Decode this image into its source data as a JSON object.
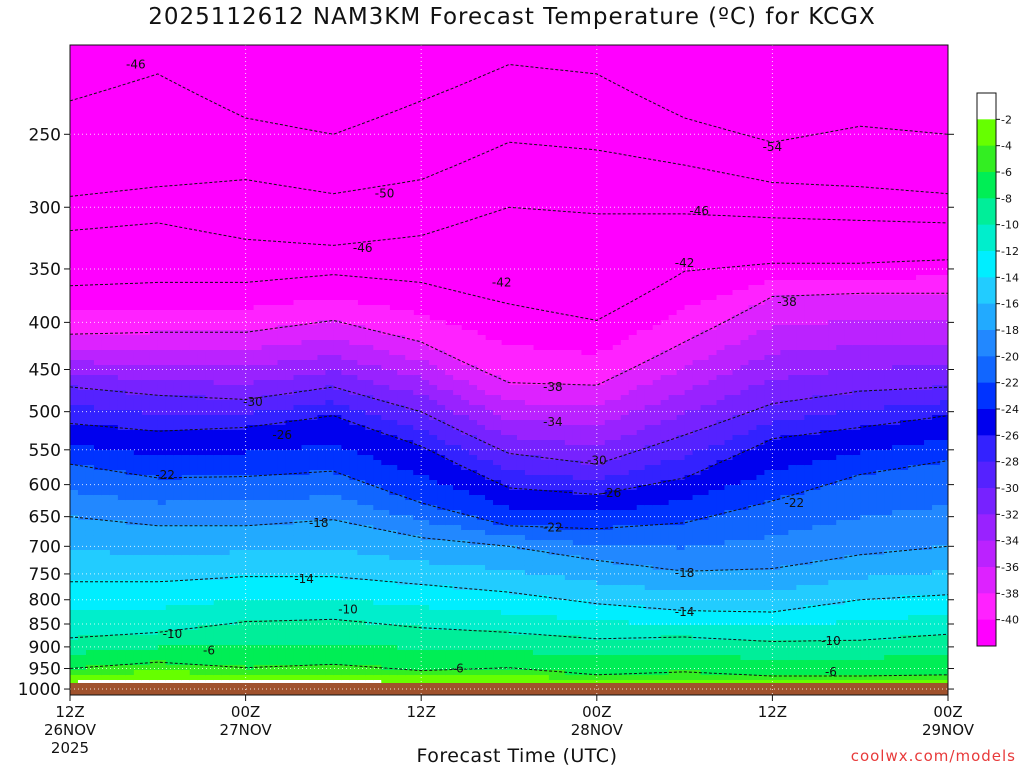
{
  "chart_data": {
    "type": "heatmap",
    "title": "2025112612 NAM3KM Forecast Temperature (ºC) for KCGX",
    "xlabel": "Forecast Time (UTC)",
    "ylabel": "",
    "credit": "coolwx.com/models",
    "x_ticks": [
      {
        "hours": 0,
        "line1": "12Z",
        "line2": "26NOV",
        "line3": "2025"
      },
      {
        "hours": 12,
        "line1": "00Z",
        "line2": "27NOV",
        "line3": ""
      },
      {
        "hours": 24,
        "line1": "12Z",
        "line2": "",
        "line3": ""
      },
      {
        "hours": 36,
        "line1": "00Z",
        "line2": "28NOV",
        "line3": ""
      },
      {
        "hours": 48,
        "line1": "12Z",
        "line2": "",
        "line3": ""
      },
      {
        "hours": 60,
        "line1": "00Z",
        "line2": "29NOV",
        "line3": ""
      }
    ],
    "xlim": [
      0,
      60
    ],
    "y_ticks": [
      250,
      300,
      350,
      400,
      450,
      500,
      550,
      600,
      650,
      700,
      750,
      800,
      850,
      900,
      950,
      1000
    ],
    "ylim": [
      1015,
      200
    ],
    "y_scale": "log-pressure",
    "colorbar": {
      "levels": [
        -2,
        -4,
        -6,
        -8,
        -10,
        -12,
        -14,
        -16,
        -18,
        -20,
        -22,
        -24,
        -26,
        -28,
        -30,
        -32,
        -34,
        -36,
        -38,
        -40
      ],
      "colors": [
        "#ffffff",
        "#66ff00",
        "#33ee22",
        "#00ee55",
        "#00ee99",
        "#00eecc",
        "#00eeff",
        "#22ccff",
        "#22aaff",
        "#2288ff",
        "#1166ff",
        "#0033ff",
        "#0000ee",
        "#3322ff",
        "#5522ff",
        "#7722ff",
        "#9922ff",
        "#bb22ff",
        "#dd22ff",
        "#ff22ff",
        "#ff00ff"
      ]
    },
    "ground_color": "#a0522d",
    "ground_pressure": 985,
    "contour_labels": [
      {
        "text": "-46",
        "hours": 4.5,
        "pressure": 210
      },
      {
        "text": "-50",
        "hours": 21.5,
        "pressure": 290
      },
      {
        "text": "-46",
        "hours": 20,
        "pressure": 332
      },
      {
        "text": "-42",
        "hours": 29.5,
        "pressure": 362
      },
      {
        "text": "-38",
        "hours": 33,
        "pressure": 470
      },
      {
        "text": "-34",
        "hours": 33,
        "pressure": 513
      },
      {
        "text": "-30",
        "hours": 36,
        "pressure": 565
      },
      {
        "text": "-26",
        "hours": 37,
        "pressure": 613
      },
      {
        "text": "-22",
        "hours": 33,
        "pressure": 668
      },
      {
        "text": "-18",
        "hours": 42,
        "pressure": 748
      },
      {
        "text": "-14",
        "hours": 42,
        "pressure": 825
      },
      {
        "text": "-10",
        "hours": 52,
        "pressure": 887
      },
      {
        "text": "-6",
        "hours": 52,
        "pressure": 958
      },
      {
        "text": "-6",
        "hours": 26.5,
        "pressure": 950
      },
      {
        "text": "-6",
        "hours": 9.5,
        "pressure": 908
      },
      {
        "text": "-10",
        "hours": 7,
        "pressure": 872
      },
      {
        "text": "-10",
        "hours": 19,
        "pressure": 820
      },
      {
        "text": "-14",
        "hours": 16,
        "pressure": 760
      },
      {
        "text": "-18",
        "hours": 17,
        "pressure": 660
      },
      {
        "text": "-22",
        "hours": 6.5,
        "pressure": 586
      },
      {
        "text": "-26",
        "hours": 14.5,
        "pressure": 530
      },
      {
        "text": "-30",
        "hours": 12.5,
        "pressure": 488
      },
      {
        "text": "-38",
        "hours": 49,
        "pressure": 380
      },
      {
        "text": "-42",
        "hours": 42,
        "pressure": 345
      },
      {
        "text": "-46",
        "hours": 43,
        "pressure": 303
      },
      {
        "text": "-54",
        "hours": 48,
        "pressure": 258
      },
      {
        "text": "-22",
        "hours": 49.5,
        "pressure": 628
      }
    ],
    "isotherms": [
      {
        "level": -6,
        "x": [
          0,
          6,
          12,
          18,
          24,
          30,
          36,
          42,
          48,
          54,
          60
        ],
        "p": [
          950,
          935,
          948,
          940,
          955,
          948,
          965,
          958,
          968,
          968,
          965
        ]
      },
      {
        "level": -10,
        "x": [
          0,
          6,
          12,
          18,
          24,
          30,
          36,
          42,
          48,
          54,
          60
        ],
        "p": [
          880,
          868,
          845,
          840,
          858,
          868,
          882,
          878,
          888,
          885,
          872
        ]
      },
      {
        "level": -14,
        "x": [
          0,
          6,
          12,
          18,
          24,
          30,
          36,
          42,
          48,
          54,
          60
        ],
        "p": [
          765,
          765,
          755,
          755,
          770,
          785,
          808,
          822,
          825,
          800,
          790
        ]
      },
      {
        "level": -18,
        "x": [
          0,
          6,
          12,
          18,
          24,
          30,
          36,
          42,
          48,
          54,
          60
        ],
        "p": [
          650,
          665,
          665,
          655,
          685,
          700,
          725,
          745,
          740,
          715,
          700
        ]
      },
      {
        "level": -22,
        "x": [
          0,
          6,
          12,
          18,
          24,
          30,
          36,
          42,
          48,
          54,
          60
        ],
        "p": [
          570,
          590,
          588,
          580,
          628,
          665,
          670,
          660,
          625,
          585,
          565
        ]
      },
      {
        "level": -26,
        "x": [
          0,
          6,
          12,
          18,
          24,
          30,
          36,
          42,
          48,
          54,
          60
        ],
        "p": [
          515,
          525,
          520,
          505,
          545,
          605,
          615,
          590,
          535,
          520,
          505
        ]
      },
      {
        "level": -30,
        "x": [
          0,
          6,
          12,
          18,
          24,
          30,
          36,
          42,
          48,
          54,
          60
        ],
        "p": [
          470,
          480,
          485,
          470,
          500,
          555,
          570,
          530,
          490,
          475,
          470
        ]
      },
      {
        "level": -38,
        "x": [
          0,
          6,
          12,
          18,
          24,
          30,
          36,
          42,
          48,
          54,
          60
        ],
        "p": [
          412,
          410,
          410,
          398,
          420,
          465,
          468,
          420,
          375,
          372,
          372
        ]
      },
      {
        "level": -42,
        "x": [
          0,
          6,
          12,
          18,
          24,
          30,
          36,
          42,
          48,
          54,
          60
        ],
        "p": [
          365,
          362,
          362,
          355,
          362,
          382,
          398,
          352,
          345,
          345,
          342
        ]
      },
      {
        "level": -46,
        "x": [
          0,
          6,
          12,
          18,
          24,
          30,
          36,
          42,
          48,
          54,
          60
        ],
        "p": [
          318,
          312,
          325,
          330,
          322,
          300,
          305,
          305,
          308,
          310,
          312
        ]
      },
      {
        "level": -50,
        "x": [
          0,
          6,
          12,
          18,
          24,
          30,
          36,
          42,
          48,
          54,
          60
        ],
        "p": [
          292,
          285,
          280,
          290,
          280,
          255,
          260,
          270,
          282,
          285,
          290
        ]
      },
      {
        "level": -54,
        "x": [
          0,
          6,
          12,
          18,
          24,
          30,
          36,
          42,
          48,
          54,
          60
        ],
        "p": [
          230,
          215,
          240,
          250,
          230,
          210,
          215,
          240,
          255,
          245,
          250
        ]
      }
    ]
  }
}
